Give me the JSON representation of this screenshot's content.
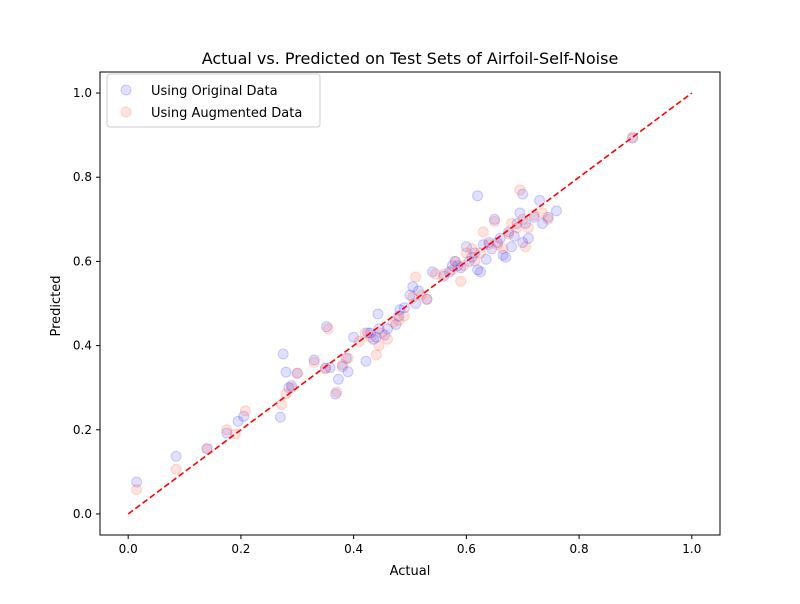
{
  "chart_data": {
    "type": "scatter",
    "title": "Actual vs. Predicted on Test Sets of Airfoil-Self-Noise",
    "xlabel": "Actual",
    "ylabel": "Predicted",
    "xlim": [
      -0.05,
      1.05
    ],
    "ylim": [
      -0.05,
      1.05
    ],
    "xticks": [
      0.0,
      0.2,
      0.4,
      0.6,
      0.8,
      1.0
    ],
    "yticks": [
      0.0,
      0.2,
      0.4,
      0.6,
      0.8,
      1.0
    ],
    "tick_labels": [
      "0.0",
      "0.2",
      "0.4",
      "0.6",
      "0.8",
      "1.0"
    ],
    "grid": false,
    "legend": "top-left",
    "reference_line": {
      "style": "dashed",
      "color": "#ff0000",
      "from": [
        0,
        0
      ],
      "to": [
        1,
        1
      ]
    },
    "series": [
      {
        "name": "Using Original Data",
        "color": "#0000ff",
        "alpha": 0.12,
        "points": [
          [
            0.015,
            0.076
          ],
          [
            0.085,
            0.137
          ],
          [
            0.14,
            0.155
          ],
          [
            0.175,
            0.192
          ],
          [
            0.195,
            0.22
          ],
          [
            0.205,
            0.232
          ],
          [
            0.27,
            0.23
          ],
          [
            0.275,
            0.38
          ],
          [
            0.28,
            0.337
          ],
          [
            0.285,
            0.3
          ],
          [
            0.29,
            0.305
          ],
          [
            0.3,
            0.334
          ],
          [
            0.33,
            0.366
          ],
          [
            0.35,
            0.347
          ],
          [
            0.352,
            0.445
          ],
          [
            0.358,
            0.348
          ],
          [
            0.368,
            0.285
          ],
          [
            0.373,
            0.32
          ],
          [
            0.38,
            0.35
          ],
          [
            0.387,
            0.37
          ],
          [
            0.39,
            0.338
          ],
          [
            0.4,
            0.42
          ],
          [
            0.422,
            0.363
          ],
          [
            0.425,
            0.43
          ],
          [
            0.43,
            0.43
          ],
          [
            0.435,
            0.415
          ],
          [
            0.44,
            0.42
          ],
          [
            0.443,
            0.475
          ],
          [
            0.445,
            0.44
          ],
          [
            0.455,
            0.425
          ],
          [
            0.46,
            0.44
          ],
          [
            0.475,
            0.45
          ],
          [
            0.48,
            0.47
          ],
          [
            0.482,
            0.485
          ],
          [
            0.49,
            0.49
          ],
          [
            0.5,
            0.52
          ],
          [
            0.505,
            0.54
          ],
          [
            0.51,
            0.5
          ],
          [
            0.515,
            0.53
          ],
          [
            0.53,
            0.51
          ],
          [
            0.54,
            0.575
          ],
          [
            0.56,
            0.565
          ],
          [
            0.57,
            0.575
          ],
          [
            0.575,
            0.59
          ],
          [
            0.58,
            0.6
          ],
          [
            0.585,
            0.59
          ],
          [
            0.59,
            0.585
          ],
          [
            0.6,
            0.635
          ],
          [
            0.605,
            0.6
          ],
          [
            0.61,
            0.61
          ],
          [
            0.615,
            0.62
          ],
          [
            0.62,
            0.58
          ],
          [
            0.62,
            0.756
          ],
          [
            0.625,
            0.575
          ],
          [
            0.63,
            0.64
          ],
          [
            0.635,
            0.605
          ],
          [
            0.64,
            0.645
          ],
          [
            0.645,
            0.63
          ],
          [
            0.65,
            0.7
          ],
          [
            0.655,
            0.645
          ],
          [
            0.66,
            0.655
          ],
          [
            0.665,
            0.615
          ],
          [
            0.67,
            0.61
          ],
          [
            0.675,
            0.67
          ],
          [
            0.68,
            0.635
          ],
          [
            0.685,
            0.66
          ],
          [
            0.69,
            0.69
          ],
          [
            0.695,
            0.715
          ],
          [
            0.7,
            0.76
          ],
          [
            0.7,
            0.645
          ],
          [
            0.705,
            0.69
          ],
          [
            0.71,
            0.655
          ],
          [
            0.72,
            0.705
          ],
          [
            0.73,
            0.745
          ],
          [
            0.735,
            0.69
          ],
          [
            0.745,
            0.705
          ],
          [
            0.76,
            0.72
          ],
          [
            0.895,
            0.893
          ]
        ]
      },
      {
        "name": "Using Augmented Data",
        "color": "#ff6347",
        "alpha": 0.18,
        "points": [
          [
            0.015,
            0.058
          ],
          [
            0.085,
            0.106
          ],
          [
            0.14,
            0.155
          ],
          [
            0.175,
            0.2
          ],
          [
            0.19,
            0.19
          ],
          [
            0.208,
            0.245
          ],
          [
            0.272,
            0.26
          ],
          [
            0.28,
            0.285
          ],
          [
            0.29,
            0.3
          ],
          [
            0.3,
            0.335
          ],
          [
            0.33,
            0.36
          ],
          [
            0.35,
            0.345
          ],
          [
            0.355,
            0.44
          ],
          [
            0.37,
            0.29
          ],
          [
            0.38,
            0.355
          ],
          [
            0.39,
            0.37
          ],
          [
            0.41,
            0.41
          ],
          [
            0.42,
            0.43
          ],
          [
            0.43,
            0.42
          ],
          [
            0.44,
            0.378
          ],
          [
            0.445,
            0.4
          ],
          [
            0.45,
            0.43
          ],
          [
            0.46,
            0.415
          ],
          [
            0.47,
            0.455
          ],
          [
            0.48,
            0.46
          ],
          [
            0.49,
            0.47
          ],
          [
            0.505,
            0.515
          ],
          [
            0.51,
            0.563
          ],
          [
            0.52,
            0.52
          ],
          [
            0.53,
            0.51
          ],
          [
            0.545,
            0.57
          ],
          [
            0.56,
            0.57
          ],
          [
            0.575,
            0.58
          ],
          [
            0.58,
            0.6
          ],
          [
            0.59,
            0.553
          ],
          [
            0.595,
            0.59
          ],
          [
            0.6,
            0.62
          ],
          [
            0.61,
            0.63
          ],
          [
            0.615,
            0.6
          ],
          [
            0.625,
            0.62
          ],
          [
            0.63,
            0.67
          ],
          [
            0.64,
            0.64
          ],
          [
            0.65,
            0.695
          ],
          [
            0.655,
            0.64
          ],
          [
            0.665,
            0.63
          ],
          [
            0.675,
            0.665
          ],
          [
            0.68,
            0.69
          ],
          [
            0.69,
            0.68
          ],
          [
            0.695,
            0.77
          ],
          [
            0.7,
            0.7
          ],
          [
            0.705,
            0.635
          ],
          [
            0.71,
            0.68
          ],
          [
            0.72,
            0.71
          ],
          [
            0.735,
            0.715
          ],
          [
            0.745,
            0.7
          ],
          [
            0.895,
            0.895
          ]
        ]
      }
    ]
  }
}
